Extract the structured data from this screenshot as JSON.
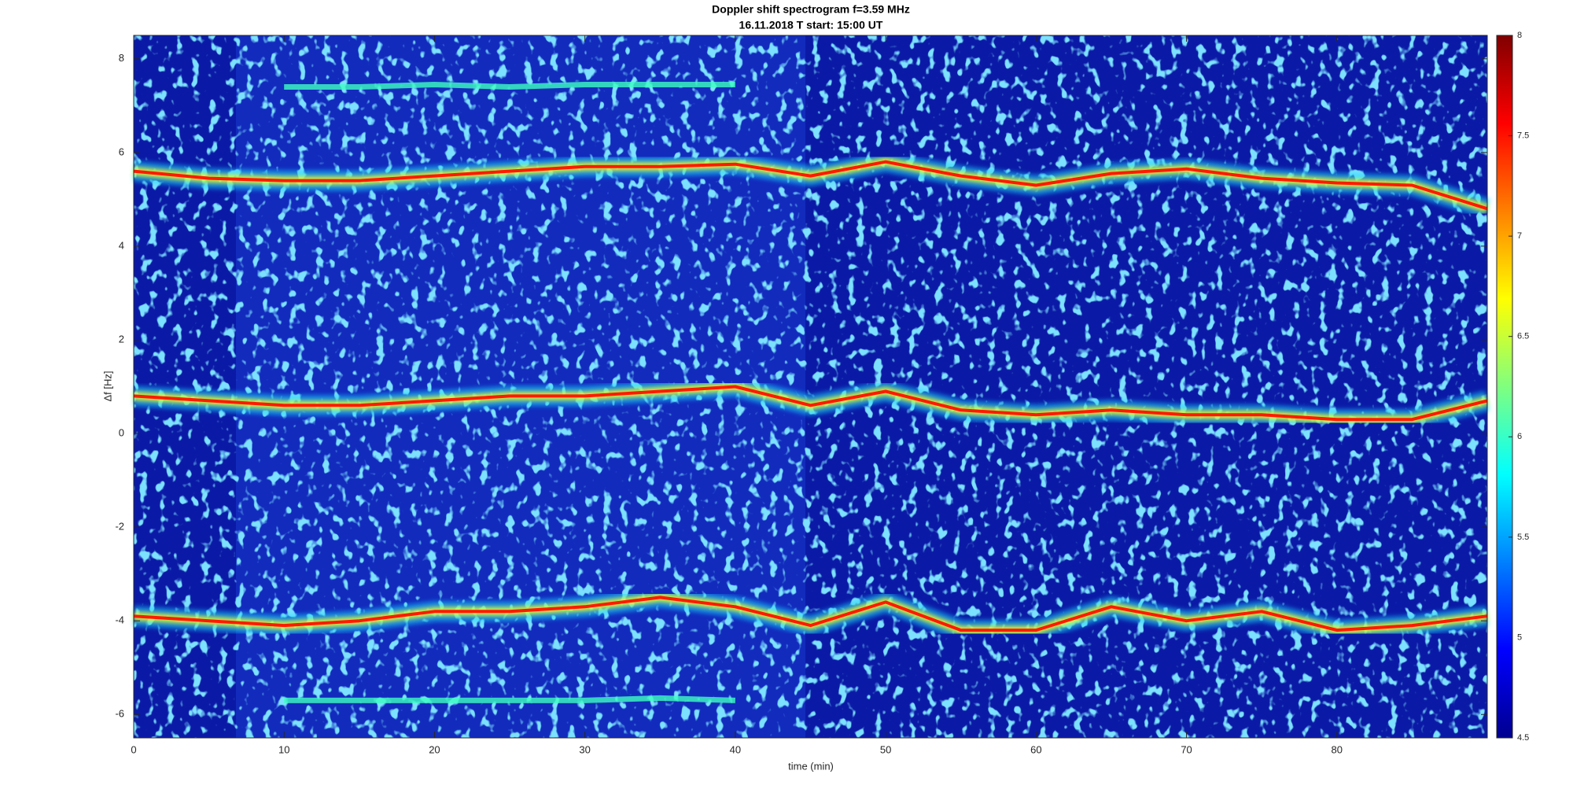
{
  "chart_data": {
    "type": "spectrogram",
    "title": "Doppler shift spectrogram f=3.59 MHz",
    "subtitle": "16.11.2018   T start: 15:00 UT",
    "x_label": "time (min)",
    "y_label": "Δf [Hz]",
    "xlim": [
      0,
      90
    ],
    "xticks": [
      0,
      10,
      20,
      30,
      40,
      50,
      60,
      70,
      80
    ],
    "ylim": [
      -6.5,
      8.5
    ],
    "yticks": [
      -6,
      -4,
      -2,
      0,
      2,
      4,
      6,
      8
    ],
    "colormap": "jet",
    "clim": [
      4.5,
      8
    ],
    "cticks": [
      4.5,
      5,
      5.5,
      6,
      6.5,
      7,
      7.5,
      8
    ],
    "x": [
      0,
      5,
      10,
      15,
      20,
      25,
      30,
      35,
      40,
      45,
      50,
      55,
      60,
      65,
      70,
      75,
      80,
      85,
      90
    ],
    "series": [
      {
        "color": "#ff1a00",
        "values": [
          5.6,
          5.45,
          5.4,
          5.4,
          5.5,
          5.6,
          5.7,
          5.7,
          5.75,
          5.5,
          5.8,
          5.5,
          5.3,
          5.55,
          5.65,
          5.45,
          5.35,
          5.3,
          4.8
        ]
      },
      {
        "color": "#ff1a00",
        "values": [
          0.8,
          0.7,
          0.6,
          0.6,
          0.7,
          0.8,
          0.8,
          0.9,
          1.0,
          0.6,
          0.9,
          0.5,
          0.4,
          0.5,
          0.4,
          0.4,
          0.3,
          0.3,
          0.7
        ]
      },
      {
        "color": "#ff1a00",
        "values": [
          -3.9,
          -4.0,
          -4.1,
          -4.0,
          -3.8,
          -3.8,
          -3.7,
          -3.5,
          -3.7,
          -4.1,
          -3.6,
          -4.2,
          -4.2,
          -3.7,
          -4.0,
          -3.8,
          -4.2,
          -4.1,
          -3.9
        ]
      },
      {
        "color": "#3cffc0",
        "values": [
          null,
          null,
          7.4,
          7.4,
          7.45,
          7.4,
          7.45,
          7.45,
          7.45,
          null,
          null,
          null,
          null,
          null,
          null,
          null,
          null,
          null,
          null
        ]
      },
      {
        "color": "#3cffc0",
        "values": [
          null,
          null,
          -5.7,
          -5.7,
          -5.7,
          -5.7,
          -5.7,
          -5.65,
          -5.7,
          null,
          null,
          null,
          null,
          null,
          null,
          null,
          null,
          null,
          null
        ]
      }
    ]
  }
}
